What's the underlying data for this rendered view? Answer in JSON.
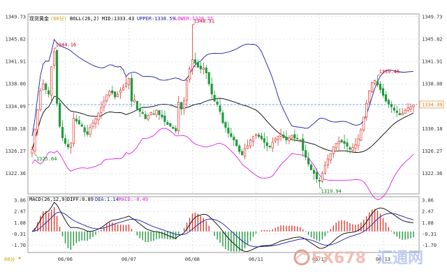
{
  "header": {
    "symbol": "现货黄金",
    "interval": "(60分)",
    "indicator": "BOLL(26,2)",
    "mid_text": "MID:1333.43",
    "upper_text": "UPPER:1338.59",
    "lower_text": "LOWER:1328.27",
    "colors": {
      "mid": "#000000",
      "upper": "#1a1aa8",
      "lower": "#e020e0",
      "symbol": "#000000",
      "interval": "#c8a000"
    }
  },
  "macd_header": {
    "indicator": "MACD(26,12,9)",
    "diff_text": "DIFF:0.89",
    "dea_text": "DEA:1.14",
    "macd_text": "MACD:-0.49",
    "colors": {
      "diff": "#000000",
      "dea": "#1a1aa8",
      "macd": "#e020e0"
    }
  },
  "footer": {
    "interval_label": "60分"
  },
  "watermark": {
    "brand": "FX678",
    "cn": "汇通网",
    "icon": "globe-logo-icon"
  },
  "chart_data": {
    "type": "candlestick",
    "price_axis_ticks": [
      "1349.73",
      "1345.82",
      "1341.91",
      "1338.00",
      "1334.09",
      "1330.18",
      "1326.27",
      "1322.36"
    ],
    "price_range": [
      1318.8,
      1350.2
    ],
    "current_price_label": "1334.39",
    "current_price": 1334.39,
    "macd_axis_ticks": [
      "3.86",
      "2.47",
      "1.08",
      "-0.31",
      "-1.70"
    ],
    "macd_range": [
      -2.6,
      4.3
    ],
    "x_tick_labels": [
      "06/06",
      "06/07",
      "06/08",
      "06/11",
      "06/12",
      "06/13"
    ],
    "annotations": [
      {
        "text": "1344.16",
        "bar": 8,
        "price": 1344.16,
        "pos": "above",
        "color": "#cc0000"
      },
      {
        "text": "1325.64",
        "bar": 1,
        "price": 1325.64,
        "pos": "below",
        "color": "#008800"
      },
      {
        "text": "1348.31",
        "bar": 58,
        "price": 1348.31,
        "pos": "above",
        "color": "#cc0000"
      },
      {
        "text": "1319.94",
        "bar": 104,
        "price": 1319.94,
        "pos": "below",
        "color": "#008800"
      },
      {
        "text": "1339.46",
        "bar": 125,
        "price": 1339.46,
        "pos": "above",
        "color": "#cc0000"
      }
    ],
    "colors": {
      "up": "#e0382f",
      "down": "#1f9a3c",
      "macd_up": "#e0382f",
      "macd_down": "#1f9a3c",
      "price_line": "#4a8ad8"
    },
    "closes": [
      1326.5,
      1330.0,
      1333.5,
      1336.8,
      1338.0,
      1337.0,
      1336.2,
      1341.0,
      1343.6,
      1334.6,
      1330.6,
      1328.6,
      1327.6,
      1327.0,
      1327.7,
      1332.0,
      1331.5,
      1331.0,
      1330.6,
      1329.6,
      1329.2,
      1330.4,
      1331.2,
      1331.9,
      1332.8,
      1333.8,
      1335.0,
      1336.1,
      1336.7,
      1336.4,
      1335.7,
      1336.2,
      1336.9,
      1337.4,
      1338.1,
      1338.9,
      1335.0,
      1335.2,
      1333.6,
      1333.2,
      1332.8,
      1331.9,
      1332.5,
      1333.0,
      1332.7,
      1333.4,
      1332.6,
      1332.2,
      1331.4,
      1330.9,
      1330.6,
      1330.2,
      1329.8,
      1334.8,
      1333.6,
      1335.1,
      1338.6,
      1340.6,
      1342.2,
      1341.6,
      1340.9,
      1340.6,
      1340.8,
      1339.9,
      1338.0,
      1336.2,
      1335.0,
      1334.4,
      1333.2,
      1331.2,
      1330.4,
      1329.4,
      1328.8,
      1328.2,
      1327.2,
      1326.2,
      1325.6,
      1326.7,
      1327.2,
      1328.2,
      1328.8,
      1329.2,
      1328.8,
      1328.4,
      1327.8,
      1327.2,
      1327.0,
      1327.8,
      1328.4,
      1328.8,
      1329.2,
      1328.6,
      1328.2,
      1328.6,
      1329.0,
      1328.5,
      1328.4,
      1328.2,
      1326.4,
      1325.2,
      1324.0,
      1323.0,
      1322.4,
      1321.4,
      1321.0,
      1322.4,
      1323.8,
      1324.9,
      1325.8,
      1327.0,
      1327.6,
      1328.0,
      1327.8,
      1327.6,
      1327.1,
      1326.6,
      1326.9,
      1327.4,
      1328.4,
      1330.0,
      1332.2,
      1334.6,
      1336.8,
      1338.2,
      1338.6,
      1337.8,
      1337.0,
      1336.0,
      1335.0,
      1334.5,
      1334.0,
      1333.4,
      1333.0,
      1332.6,
      1332.9,
      1333.4,
      1333.8,
      1334.0,
      1334.39
    ]
  }
}
